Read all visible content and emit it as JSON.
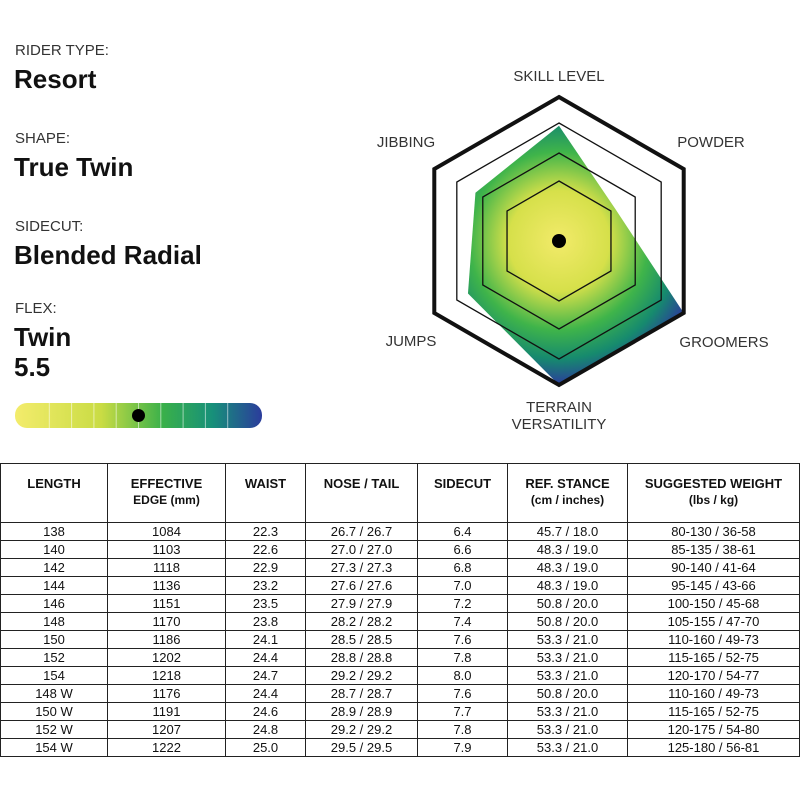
{
  "specs": [
    {
      "label": "RIDER TYPE:",
      "value": "Resort"
    },
    {
      "label": "SHAPE:",
      "value": "True Twin"
    },
    {
      "label": "SIDECUT:",
      "value": "Blended Radial"
    }
  ],
  "flex": {
    "label": "FLEX:",
    "name": "Twin",
    "value": 5.5,
    "range": [
      1,
      10
    ]
  },
  "radar": {
    "range": [
      0,
      10
    ],
    "axes": [
      {
        "label": "SKILL LEVEL",
        "value": 8
      },
      {
        "label": "POWDER",
        "value": 4.5
      },
      {
        "label": "GROOMERS",
        "value": 10
      },
      {
        "label": "TERRAIN VERSATILITY",
        "value": 10
      },
      {
        "label": "JUMPS",
        "value": 7.3
      },
      {
        "label": "JIBBING",
        "value": 6.7
      }
    ]
  },
  "table": {
    "headers": [
      [
        "LENGTH"
      ],
      [
        "EFFECTIVE",
        "EDGE (mm)"
      ],
      [
        "WAIST"
      ],
      [
        "NOSE / TAIL"
      ],
      [
        "SIDECUT"
      ],
      [
        "REF. STANCE",
        "(cm / inches)"
      ],
      [
        "SUGGESTED WEIGHT",
        "(lbs / kg)"
      ]
    ],
    "rows": [
      [
        "138",
        "1084",
        "22.3",
        "26.7 / 26.7",
        "6.4",
        "45.7 / 18.0",
        "80-130 / 36-58"
      ],
      [
        "140",
        "1103",
        "22.6",
        "27.0 / 27.0",
        "6.6",
        "48.3 / 19.0",
        "85-135 / 38-61"
      ],
      [
        "142",
        "1118",
        "22.9",
        "27.3 / 27.3",
        "6.8",
        "48.3 / 19.0",
        "90-140 / 41-64"
      ],
      [
        "144",
        "1136",
        "23.2",
        "27.6 / 27.6",
        "7.0",
        "48.3 / 19.0",
        "95-145 / 43-66"
      ],
      [
        "146",
        "1151",
        "23.5",
        "27.9 / 27.9",
        "7.2",
        "50.8 / 20.0",
        "100-150 / 45-68"
      ],
      [
        "148",
        "1170",
        "23.8",
        "28.2 / 28.2",
        "7.4",
        "50.8 / 20.0",
        "105-155 / 47-70"
      ],
      [
        "150",
        "1186",
        "24.1",
        "28.5 / 28.5",
        "7.6",
        "53.3 / 21.0",
        "110-160 / 49-73"
      ],
      [
        "152",
        "1202",
        "24.4",
        "28.8 / 28.8",
        "7.8",
        "53.3 / 21.0",
        "115-165 / 52-75"
      ],
      [
        "154",
        "1218",
        "24.7",
        "29.2 / 29.2",
        "8.0",
        "53.3 / 21.0",
        "120-170 / 54-77"
      ],
      [
        "148 W",
        "1176",
        "24.4",
        "28.7 / 28.7",
        "7.6",
        "50.8 / 20.0",
        "110-160 / 49-73"
      ],
      [
        "150 W",
        "1191",
        "24.6",
        "28.9 / 28.9",
        "7.7",
        "53.3 / 21.0",
        "115-165 / 52-75"
      ],
      [
        "152 W",
        "1207",
        "24.8",
        "29.2 / 29.2",
        "7.8",
        "53.3 / 21.0",
        "120-175 / 54-80"
      ],
      [
        "154 W",
        "1222",
        "25.0",
        "29.5 / 29.5",
        "7.9",
        "53.3 / 21.0",
        "125-180 / 56-81"
      ]
    ]
  }
}
